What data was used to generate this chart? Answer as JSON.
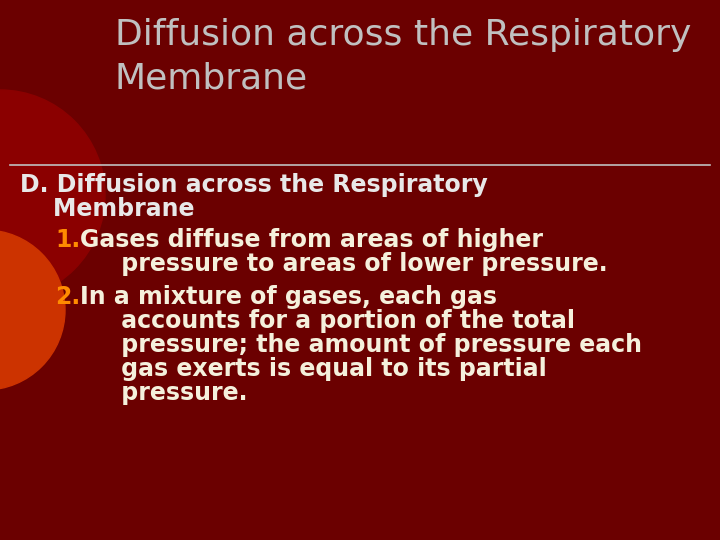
{
  "bg_color": "#6B0000",
  "title_text": "Diffusion across the Respiratory\nMembrane",
  "title_color": "#C0C0C0",
  "title_fontsize": 26,
  "divider_color": "#C0C0C0",
  "section_d_line1": "D. Diffusion across the Respiratory",
  "section_d_line2": "    Membrane",
  "section_d_color": "#E8E8E8",
  "section_d_fontsize": 17,
  "item1_number": "1.",
  "item1_number_color": "#FF8C00",
  "item1_line1": "Gases diffuse from areas of higher",
  "item1_line2": "     pressure to areas of lower pressure.",
  "item1_color": "#F5F0DC",
  "item1_fontsize": 17,
  "item2_number": "2.",
  "item2_number_color": "#FF8C00",
  "item2_line1": "In a mixture of gases, each gas",
  "item2_line2": "     accounts for a portion of the total",
  "item2_line3": "     pressure; the amount of pressure each",
  "item2_line4": "     gas exerts is equal to its partial",
  "item2_line5": "     pressure.",
  "item2_color": "#F5F0DC",
  "item2_fontsize": 17,
  "circle_outer_color": "#8B0000",
  "circle_inner_color": "#CC3300",
  "title_font": "DejaVu Sans",
  "body_font": "DejaVu Sans"
}
